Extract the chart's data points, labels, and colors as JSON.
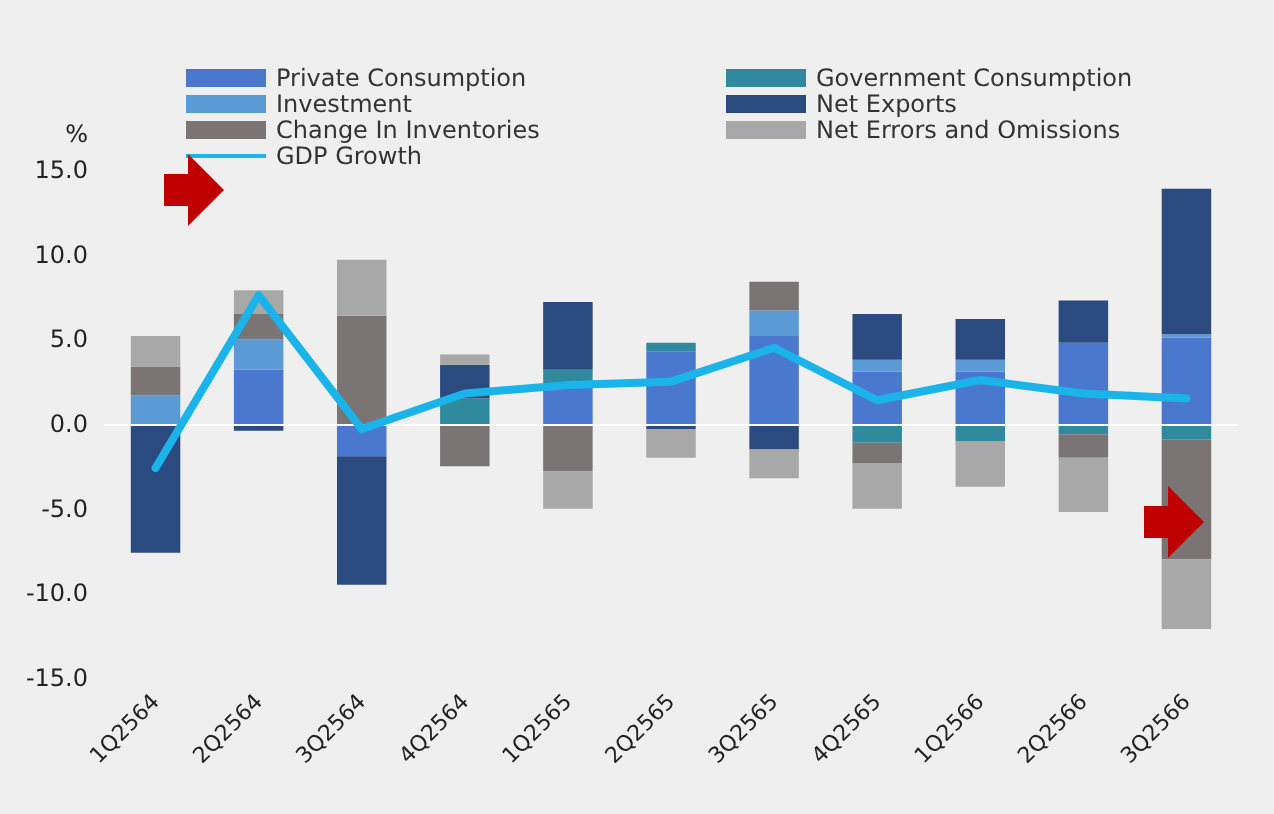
{
  "chart_data": {
    "type": "bar",
    "stacked": true,
    "ylabel": "%",
    "categories": [
      "1Q2564",
      "2Q2564",
      "3Q2564",
      "4Q2564",
      "1Q2565",
      "2Q2565",
      "3Q2565",
      "4Q2565",
      "1Q2566",
      "2Q2566",
      "3Q2566"
    ],
    "series": [
      {
        "name": "Private Consumption",
        "color": "#4a78cf",
        "values": [
          null,
          3.2,
          -1.9,
          null,
          2.2,
          4.3,
          5.2,
          3.1,
          3.1,
          4.8,
          5.1
        ]
      },
      {
        "name": "Government Consumption",
        "color": "#2e8a9c",
        "values": [
          null,
          null,
          null,
          1.5,
          1.0,
          0.5,
          null,
          -1.1,
          -1.0,
          -0.6,
          -0.9
        ]
      },
      {
        "name": "Investment",
        "color": "#5b9bd5",
        "values": [
          1.7,
          1.8,
          null,
          null,
          null,
          null,
          1.5,
          0.7,
          0.7,
          null,
          0.2
        ]
      },
      {
        "name": "Net Exports",
        "color": "#2b4a80",
        "values": [
          -7.6,
          -0.4,
          -7.6,
          2.0,
          4.0,
          -0.3,
          -1.5,
          2.7,
          2.4,
          2.5,
          8.6
        ]
      },
      {
        "name": "Change In Inventories",
        "color": "#7a7474",
        "values": [
          1.7,
          1.5,
          6.4,
          -2.5,
          -2.8,
          null,
          1.7,
          -1.2,
          null,
          -1.4,
          -7.1
        ]
      },
      {
        "name": "Net Errors and Omissions",
        "color": "#a8a8a8",
        "values": [
          1.8,
          1.4,
          3.3,
          0.6,
          -2.2,
          -1.7,
          -1.7,
          -2.7,
          -2.7,
          -3.2,
          -4.1
        ]
      },
      {
        "name": "GDP Growth",
        "type": "line",
        "color": "#1ab4ea",
        "values": [
          -2.6,
          7.6,
          -0.3,
          1.8,
          2.3,
          2.5,
          4.5,
          1.4,
          2.6,
          1.8,
          1.5
        ]
      }
    ],
    "ylim": [
      -15,
      15
    ],
    "yticks": [
      {
        "value": -15,
        "label": "-15.0"
      },
      {
        "value": -10,
        "label": "-10.0"
      },
      {
        "value": -5,
        "label": "-5.0"
      },
      {
        "value": 0,
        "label": "0.0"
      },
      {
        "value": 5,
        "label": "5.0"
      },
      {
        "value": 10,
        "label": "10.0"
      },
      {
        "value": 15,
        "label": "15.0"
      }
    ],
    "ref_lines": [
      {
        "axis": "y",
        "value": 0,
        "color": "#ffffff"
      }
    ],
    "grid": false,
    "legend": "top",
    "marker": "none",
    "line_style": "solid"
  }
}
